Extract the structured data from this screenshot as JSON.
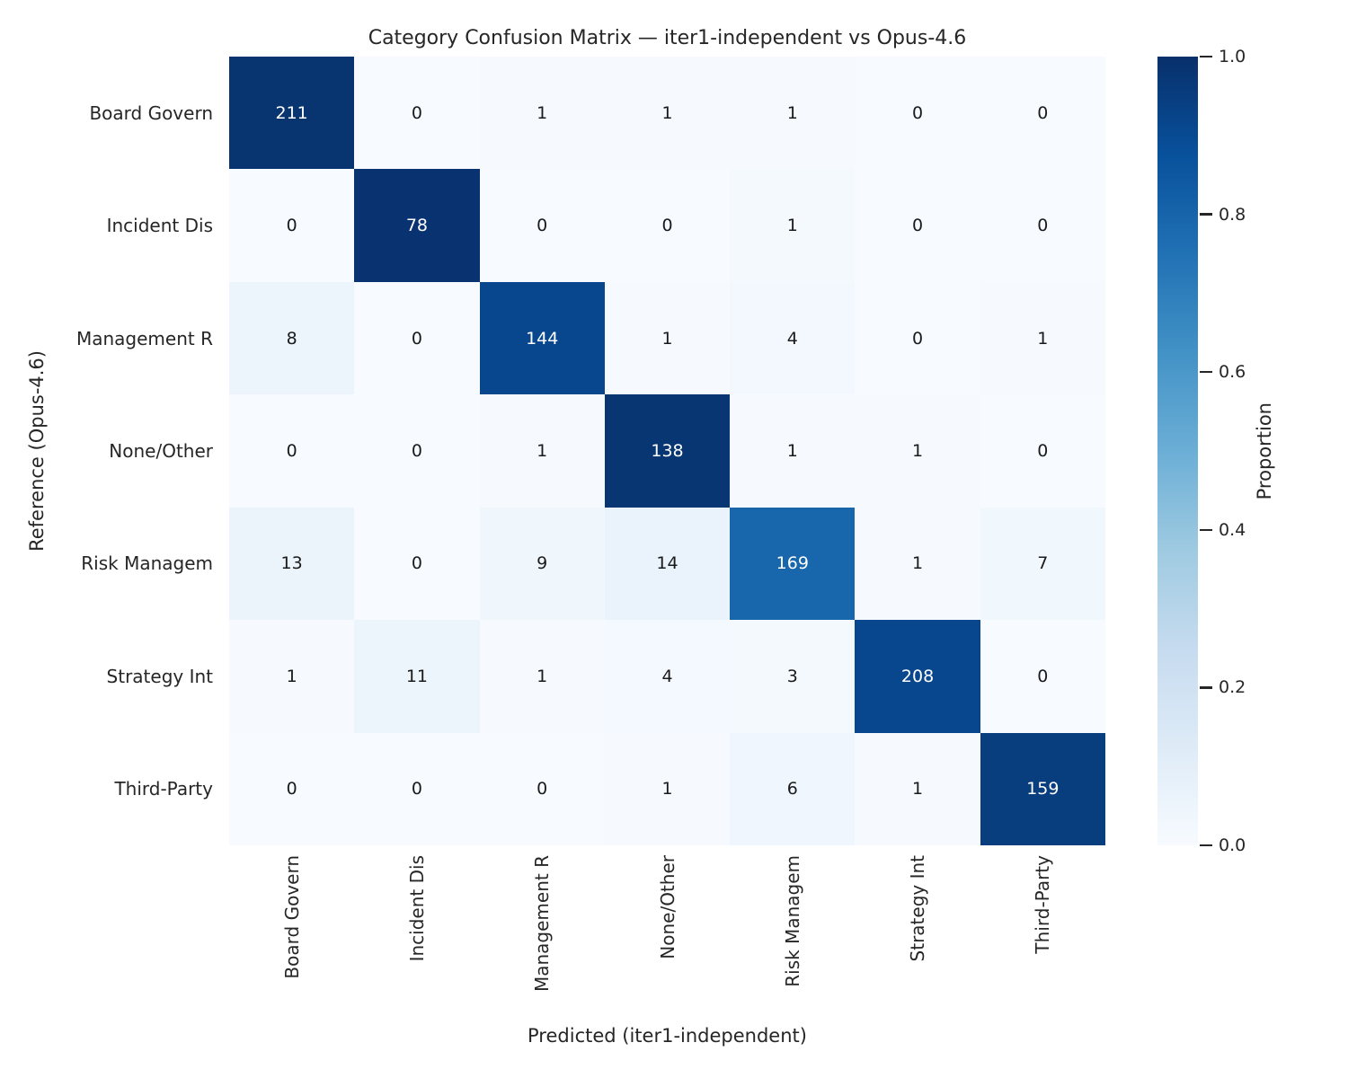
{
  "figure": {
    "background": "#ffffff"
  },
  "chart_data": {
    "type": "heatmap",
    "title": "Category Confusion Matrix — iter1-independent vs Opus-4.6",
    "xlabel": "Predicted (iter1-independent)",
    "ylabel": "Reference (Opus-4.6)",
    "x_categories": [
      "Board Govern",
      "Incident Dis",
      "Management R",
      "None/Other",
      "Risk Managem",
      "Strategy Int",
      "Third-Party"
    ],
    "y_categories": [
      "Board Govern",
      "Incident Dis",
      "Management R",
      "None/Other",
      "Risk Managem",
      "Strategy Int",
      "Third-Party"
    ],
    "values": [
      [
        211,
        0,
        1,
        1,
        1,
        0,
        0
      ],
      [
        0,
        78,
        0,
        0,
        1,
        0,
        0
      ],
      [
        8,
        0,
        144,
        1,
        4,
        0,
        1
      ],
      [
        0,
        0,
        1,
        138,
        1,
        1,
        0
      ],
      [
        13,
        0,
        9,
        14,
        169,
        1,
        7
      ],
      [
        1,
        11,
        1,
        4,
        3,
        208,
        0
      ],
      [
        0,
        0,
        0,
        1,
        6,
        1,
        159
      ]
    ],
    "normalization": "row",
    "grid": "off",
    "legend": "colorbar-right",
    "color_scale": {
      "name": "Blues",
      "anchors": [
        "#f7fbff",
        "#deebf7",
        "#c6dbef",
        "#9ecae1",
        "#6baed6",
        "#4292c6",
        "#2171b5",
        "#08519c",
        "#08306b"
      ]
    },
    "colorbar": {
      "label": "Proportion",
      "tick_labels": [
        "1.0",
        "0.8",
        "0.6",
        "0.4",
        "0.2",
        "0.0"
      ],
      "tick_values": [
        1.0,
        0.8,
        0.6,
        0.4,
        0.2,
        0.0
      ],
      "range": [
        0.0,
        1.0
      ]
    }
  },
  "colors": {
    "text_primary": "#262626",
    "annot_on_dark": "#ffffff",
    "annot_on_light": "#1a1a1a",
    "background": "#ffffff"
  }
}
